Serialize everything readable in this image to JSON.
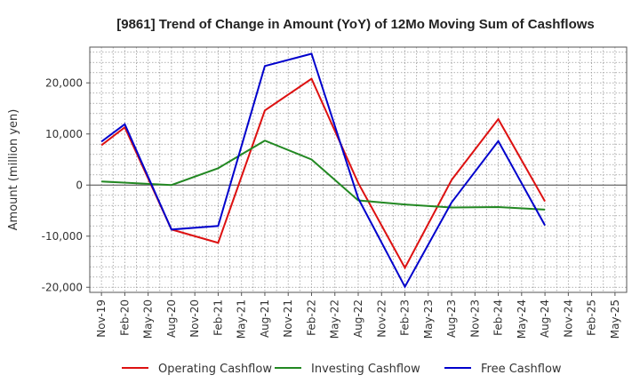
{
  "chart_data": {
    "type": "line",
    "title": "[9861]  Trend of Change in Amount (YoY) of 12Mo Moving Sum of Cashflows",
    "xlabel": "",
    "ylabel": "Amount (million yen)",
    "ylim": [
      -21000,
      27000
    ],
    "yticks": [
      -20000,
      -10000,
      0,
      10000,
      20000
    ],
    "ytick_labels": [
      "-20,000",
      "-10,000",
      "0",
      "10,000",
      "20,000"
    ],
    "grid": true,
    "legend_position": "bottom",
    "categories": [
      "Nov-19",
      "Feb-20",
      "May-20",
      "Aug-20",
      "Nov-20",
      "Feb-21",
      "May-21",
      "Aug-21",
      "Nov-21",
      "Feb-22",
      "May-22",
      "Aug-22",
      "Nov-22",
      "Feb-23",
      "May-23",
      "Aug-23",
      "Nov-23",
      "Feb-24",
      "May-24",
      "Aug-24",
      "Nov-24",
      "Feb-25",
      "May-25"
    ],
    "series": [
      {
        "name": "Operating Cashflow",
        "color": "#dd1111",
        "values": [
          7800,
          11300,
          null,
          -8700,
          null,
          -11300,
          null,
          14600,
          null,
          20800,
          null,
          400,
          null,
          -16200,
          null,
          1000,
          null,
          12900,
          null,
          -3200,
          null,
          null,
          null
        ]
      },
      {
        "name": "Investing Cashflow",
        "color": "#228822",
        "values": [
          700,
          null,
          null,
          0,
          null,
          3300,
          null,
          8700,
          null,
          5000,
          null,
          -3000,
          null,
          -3800,
          null,
          -4400,
          null,
          -4300,
          null,
          -4800,
          null,
          null,
          null
        ]
      },
      {
        "name": "Free Cashflow",
        "color": "#0000cc",
        "values": [
          8500,
          11900,
          null,
          -8700,
          null,
          -8000,
          null,
          23300,
          null,
          25700,
          null,
          -2600,
          null,
          -19900,
          null,
          -3400,
          null,
          8600,
          null,
          -7900,
          null,
          null,
          null
        ]
      }
    ]
  }
}
